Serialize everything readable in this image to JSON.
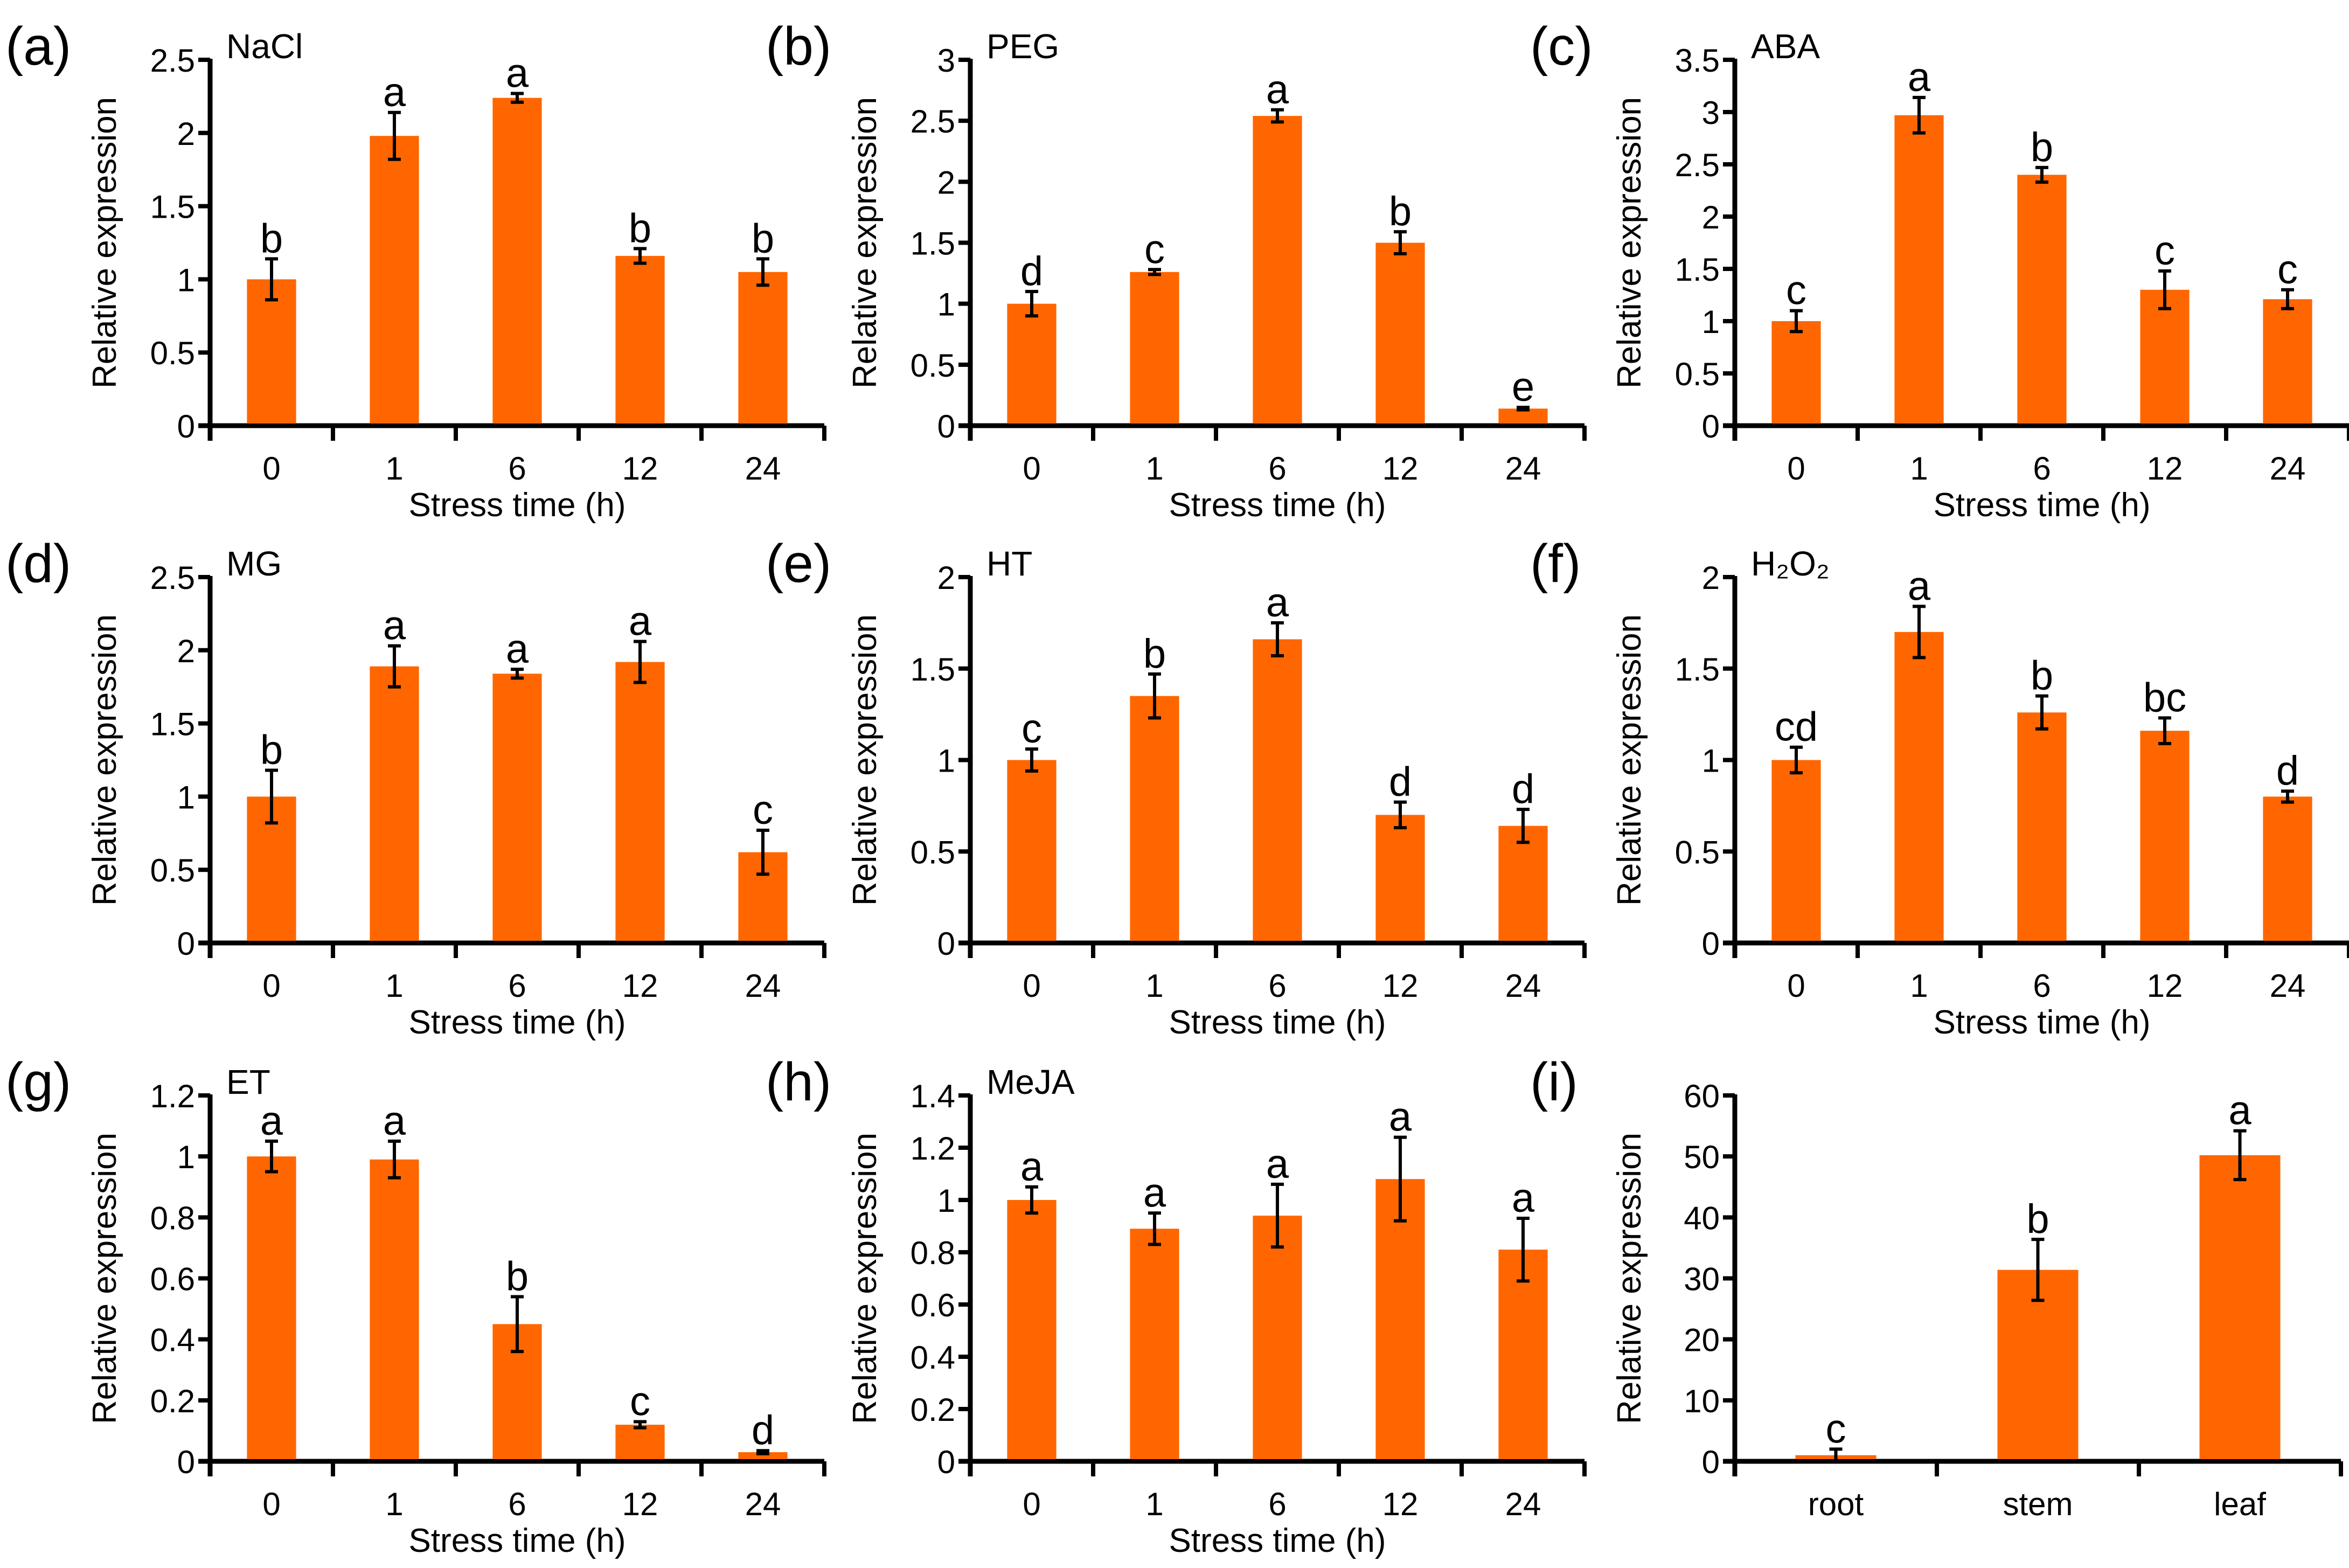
{
  "colors": {
    "bar": "#FF6600",
    "axis": "#000000",
    "error": "#000000"
  },
  "chart_data": [
    {
      "type": "bar",
      "panel": "(a)",
      "title": "NaCl",
      "xlabel": "Stress time (h)",
      "ylabel": "Relative expression",
      "categories": [
        "0",
        "1",
        "6",
        "12",
        "24"
      ],
      "values": [
        1,
        1.98,
        2.24,
        1.16,
        1.05
      ],
      "errors": [
        0.14,
        0.16,
        0.03,
        0.05,
        0.09
      ],
      "letters": [
        "b",
        "a",
        "a",
        "b",
        "b"
      ],
      "ylim": [
        0,
        2.5
      ],
      "yticks": [
        "0",
        "0.5",
        "1",
        "1.5",
        "2",
        "2.5"
      ]
    },
    {
      "type": "bar",
      "panel": "(b)",
      "title": "PEG",
      "xlabel": "Stress time (h)",
      "ylabel": "Relative expression",
      "categories": [
        "0",
        "1",
        "6",
        "12",
        "24"
      ],
      "values": [
        1,
        1.26,
        2.54,
        1.5,
        0.14
      ],
      "errors": [
        0.1,
        0.02,
        0.05,
        0.09,
        0.01
      ],
      "letters": [
        "d",
        "c",
        "a",
        "b",
        "e"
      ],
      "ylim": [
        0,
        3
      ],
      "yticks": [
        "0",
        "0.5",
        "1",
        "1.5",
        "2",
        "2.5",
        "3"
      ]
    },
    {
      "type": "bar",
      "panel": "(c)",
      "title": "ABA",
      "xlabel": "Stress time (h)",
      "ylabel": "Relative expression",
      "categories": [
        "0",
        "1",
        "6",
        "12",
        "24"
      ],
      "values": [
        1,
        2.97,
        2.4,
        1.3,
        1.21
      ],
      "errors": [
        0.1,
        0.17,
        0.07,
        0.18,
        0.09
      ],
      "letters": [
        "c",
        "a",
        "b",
        "c",
        "c"
      ],
      "ylim": [
        0,
        3.5
      ],
      "yticks": [
        "0",
        "0.5",
        "1",
        "1.5",
        "2",
        "2.5",
        "3",
        "3.5"
      ]
    },
    {
      "type": "bar",
      "panel": "(d)",
      "title": "MG",
      "xlabel": "Stress time (h)",
      "ylabel": "Relative expression",
      "categories": [
        "0",
        "1",
        "6",
        "12",
        "24"
      ],
      "values": [
        1,
        1.89,
        1.84,
        1.92,
        0.62
      ],
      "errors": [
        0.18,
        0.14,
        0.03,
        0.14,
        0.15
      ],
      "letters": [
        "b",
        "a",
        "a",
        "a",
        "c"
      ],
      "ylim": [
        0,
        2.5
      ],
      "yticks": [
        "0",
        "0.5",
        "1",
        "1.5",
        "2",
        "2.5"
      ]
    },
    {
      "type": "bar",
      "panel": "(e)",
      "title": "HT",
      "xlabel": "Stress time (h)",
      "ylabel": "Relative expression",
      "categories": [
        "0",
        "1",
        "6",
        "12",
        "24"
      ],
      "values": [
        1,
        1.35,
        1.66,
        0.7,
        0.64
      ],
      "errors": [
        0.06,
        0.12,
        0.09,
        0.07,
        0.09
      ],
      "letters": [
        "c",
        "b",
        "a",
        "d",
        "d"
      ],
      "ylim": [
        0,
        2
      ],
      "yticks": [
        "0",
        "0.5",
        "1",
        "1.5",
        "2"
      ]
    },
    {
      "type": "bar",
      "panel": "(f)",
      "title": "H₂O₂",
      "xlabel": "Stress time (h)",
      "ylabel": "Relative expression",
      "categories": [
        "0",
        "1",
        "6",
        "12",
        "24"
      ],
      "values": [
        1,
        1.7,
        1.26,
        1.16,
        0.8
      ],
      "errors": [
        0.07,
        0.14,
        0.09,
        0.07,
        0.03
      ],
      "letters": [
        "cd",
        "a",
        "b",
        "bc",
        "d"
      ],
      "ylim": [
        0,
        2
      ],
      "yticks": [
        "0",
        "0.5",
        "1",
        "1.5",
        "2"
      ]
    },
    {
      "type": "bar",
      "panel": "(g)",
      "title": "ET",
      "xlabel": "Stress time (h)",
      "ylabel": "Relative expression",
      "categories": [
        "0",
        "1",
        "6",
        "12",
        "24"
      ],
      "values": [
        1,
        0.99,
        0.45,
        0.12,
        0.03
      ],
      "errors": [
        0.05,
        0.06,
        0.09,
        0.01,
        0.005
      ],
      "letters": [
        "a",
        "a",
        "b",
        "c",
        "d"
      ],
      "ylim": [
        0,
        1.2
      ],
      "yticks": [
        "0",
        "0.2",
        "0.4",
        "0.6",
        "0.8",
        "1",
        "1.2"
      ]
    },
    {
      "type": "bar",
      "panel": "(h)",
      "title": "MeJA",
      "xlabel": "Stress time (h)",
      "ylabel": "Relative expression",
      "categories": [
        "0",
        "1",
        "6",
        "12",
        "24"
      ],
      "values": [
        1,
        0.89,
        0.94,
        1.08,
        0.81
      ],
      "errors": [
        0.05,
        0.06,
        0.12,
        0.16,
        0.12
      ],
      "letters": [
        "a",
        "a",
        "a",
        "a",
        "a"
      ],
      "ylim": [
        0,
        1.4
      ],
      "yticks": [
        "0",
        "0.2",
        "0.4",
        "0.6",
        "0.8",
        "1",
        "1.2",
        "1.4"
      ]
    },
    {
      "type": "bar",
      "panel": "(i)",
      "title": "",
      "xlabel": "",
      "ylabel": "Relative expression",
      "categories": [
        "root",
        "stem",
        "leaf"
      ],
      "values": [
        1,
        31.4,
        50.2
      ],
      "errors": [
        1,
        5,
        4
      ],
      "letters": [
        "c",
        "b",
        "a"
      ],
      "ylim": [
        0,
        60
      ],
      "yticks": [
        "0",
        "10",
        "20",
        "30",
        "40",
        "50",
        "60"
      ]
    }
  ]
}
